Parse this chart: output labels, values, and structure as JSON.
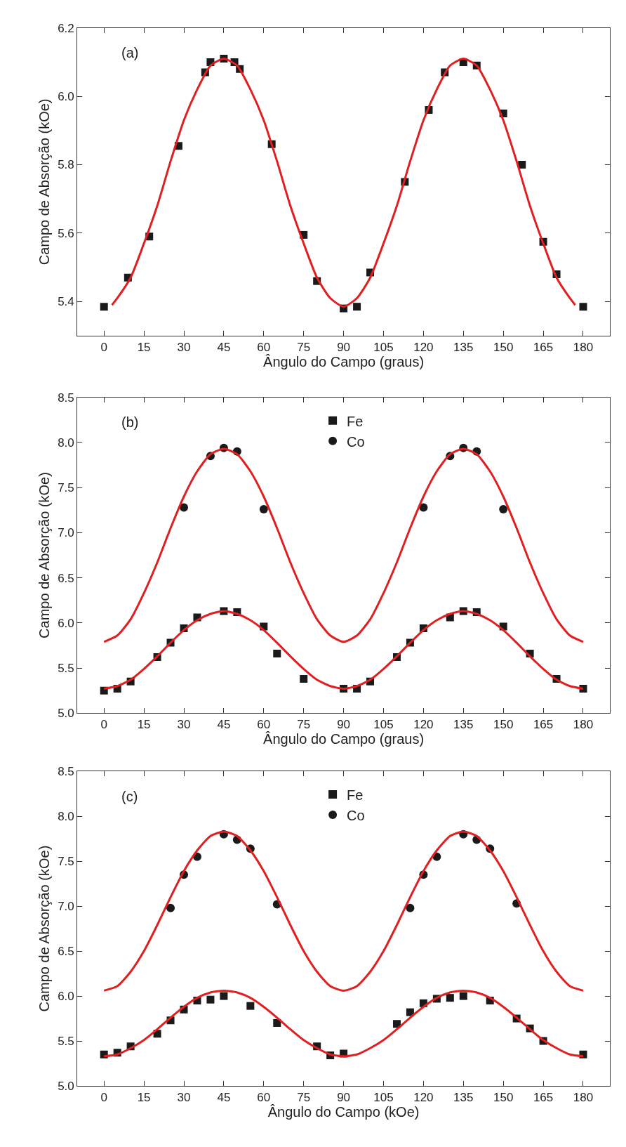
{
  "chart_data": [
    {
      "type": "scatter",
      "xlabel": "Ângulo do Campo (graus)",
      "ylabel": "Campo de Absorção (kOe)",
      "annotations": [
        "(a)"
      ],
      "xlim": [
        -10,
        190
      ],
      "ylim": [
        5.3,
        6.2
      ],
      "xticks": [
        0,
        15,
        30,
        45,
        60,
        75,
        90,
        105,
        120,
        135,
        150,
        165,
        180
      ],
      "yticks": [
        5.4,
        5.6,
        5.8,
        {
          "value": 6,
          "label": "6.0"
        },
        6.2
      ],
      "grid": false,
      "legend": false,
      "series": [
        {
          "marker": "square",
          "color": "#1a1a1a",
          "x": [
            0,
            9,
            17,
            28,
            38,
            40,
            45,
            49,
            51,
            63,
            75,
            80,
            90,
            95,
            100,
            113,
            122,
            128,
            135,
            140,
            150,
            157,
            165,
            170,
            180
          ],
          "values": [
            5.385,
            5.47,
            5.59,
            5.855,
            6.07,
            6.1,
            6.11,
            6.1,
            6.08,
            5.86,
            5.595,
            5.46,
            5.38,
            5.385,
            5.485,
            5.75,
            5.96,
            6.07,
            6.1,
            6.09,
            5.95,
            5.8,
            5.575,
            5.48,
            5.385
          ]
        },
        {
          "type": "line",
          "marker": "none",
          "color": "#e02020",
          "x": [
            3,
            5,
            10,
            15,
            20,
            25,
            30,
            35,
            40,
            45,
            50,
            55,
            60,
            65,
            70,
            75,
            80,
            85,
            90,
            95,
            100,
            105,
            110,
            115,
            120,
            125,
            130,
            135,
            140,
            145,
            150,
            155,
            160,
            165,
            170,
            175,
            177
          ],
          "values": [
            5.39,
            5.41,
            5.47,
            5.57,
            5.68,
            5.81,
            5.93,
            6.02,
            6.09,
            6.11,
            6.09,
            6.02,
            5.93,
            5.81,
            5.68,
            5.57,
            5.47,
            5.41,
            5.385,
            5.41,
            5.47,
            5.57,
            5.68,
            5.81,
            5.93,
            6.02,
            6.09,
            6.11,
            6.09,
            6.02,
            5.93,
            5.81,
            5.68,
            5.57,
            5.47,
            5.41,
            5.39
          ]
        }
      ]
    },
    {
      "type": "scatter",
      "xlabel": "Ângulo do Campo (graus)",
      "ylabel": "Campo de Absorção (kOe)",
      "annotations": [
        "(b)"
      ],
      "xlim": [
        -10,
        190
      ],
      "ylim": [
        5.0,
        8.5
      ],
      "xticks": [
        0,
        15,
        30,
        45,
        60,
        75,
        90,
        105,
        120,
        135,
        150,
        165,
        180
      ],
      "yticks": [
        {
          "value": 5,
          "label": "5.0"
        },
        5.5,
        {
          "value": 6,
          "label": "6.0"
        },
        6.5,
        {
          "value": 7,
          "label": "7.0"
        },
        7.5,
        {
          "value": 8,
          "label": "8.0"
        },
        8.5
      ],
      "grid": false,
      "legend": "top",
      "series": [
        {
          "name": "Fe",
          "marker": "square",
          "color": "#1a1a1a",
          "x": [
            0,
            5,
            10,
            20,
            25,
            30,
            35,
            45,
            50,
            60,
            65,
            75,
            90,
            95,
            100,
            110,
            115,
            120,
            130,
            135,
            140,
            150,
            160,
            170,
            180
          ],
          "values": [
            5.25,
            5.27,
            5.35,
            5.62,
            5.78,
            5.94,
            6.06,
            6.13,
            6.12,
            5.96,
            5.66,
            5.38,
            5.27,
            5.27,
            5.35,
            5.62,
            5.78,
            5.94,
            6.06,
            6.13,
            6.12,
            5.96,
            5.66,
            5.38,
            5.27
          ]
        },
        {
          "name": "Co",
          "marker": "circle",
          "color": "#1a1a1a",
          "x": [
            30,
            40,
            45,
            50,
            60,
            120,
            130,
            135,
            140,
            150
          ],
          "values": [
            7.28,
            7.85,
            7.94,
            7.9,
            7.26,
            7.28,
            7.85,
            7.94,
            7.9,
            7.26
          ]
        },
        {
          "type": "line",
          "marker": "none",
          "color": "#e02020",
          "x": [
            0,
            5,
            10,
            15,
            20,
            25,
            30,
            35,
            40,
            45,
            50,
            55,
            60,
            65,
            70,
            75,
            80,
            85,
            90,
            95,
            100,
            105,
            110,
            115,
            120,
            125,
            130,
            135,
            140,
            145,
            150,
            155,
            160,
            165,
            170,
            175,
            180
          ],
          "values": [
            5.79,
            5.86,
            6.04,
            6.33,
            6.67,
            7.05,
            7.4,
            7.68,
            7.87,
            7.93,
            7.87,
            7.68,
            7.4,
            7.05,
            6.67,
            6.33,
            6.04,
            5.86,
            5.79,
            5.86,
            6.04,
            6.33,
            6.67,
            7.05,
            7.4,
            7.68,
            7.87,
            7.93,
            7.87,
            7.68,
            7.4,
            7.05,
            6.67,
            6.33,
            6.04,
            5.86,
            5.79
          ]
        },
        {
          "type": "line",
          "marker": "none",
          "color": "#e02020",
          "x": [
            0,
            5,
            10,
            15,
            20,
            25,
            30,
            35,
            40,
            45,
            50,
            55,
            60,
            65,
            70,
            75,
            80,
            85,
            90,
            95,
            100,
            105,
            110,
            115,
            120,
            125,
            130,
            135,
            140,
            145,
            150,
            155,
            160,
            165,
            170,
            175,
            180
          ],
          "values": [
            5.27,
            5.3,
            5.37,
            5.49,
            5.63,
            5.78,
            5.92,
            6.03,
            6.1,
            6.13,
            6.1,
            6.03,
            5.92,
            5.78,
            5.63,
            5.49,
            5.37,
            5.3,
            5.27,
            5.3,
            5.37,
            5.49,
            5.63,
            5.78,
            5.92,
            6.03,
            6.1,
            6.13,
            6.1,
            6.03,
            5.92,
            5.78,
            5.63,
            5.49,
            5.37,
            5.3,
            5.27
          ]
        }
      ]
    },
    {
      "type": "scatter",
      "xlabel": "Ângulo do Campo (kOe)",
      "ylabel": "Campo de Absorção (kOe)",
      "annotations": [
        "(c)"
      ],
      "xlim": [
        -10,
        190
      ],
      "ylim": [
        5.0,
        8.5
      ],
      "xticks": [
        0,
        15,
        30,
        45,
        60,
        75,
        90,
        105,
        120,
        135,
        150,
        165,
        180
      ],
      "yticks": [
        {
          "value": 5,
          "label": "5.0"
        },
        5.5,
        {
          "value": 6,
          "label": "6.0"
        },
        6.5,
        {
          "value": 7,
          "label": "7.0"
        },
        7.5,
        {
          "value": 8,
          "label": "8.0"
        },
        8.5
      ],
      "grid": false,
      "legend": "top",
      "series": [
        {
          "name": "Fe",
          "marker": "square",
          "color": "#1a1a1a",
          "x": [
            0,
            5,
            10,
            20,
            25,
            30,
            35,
            40,
            45,
            55,
            65,
            80,
            85,
            90,
            110,
            115,
            120,
            125,
            130,
            135,
            145,
            155,
            160,
            165,
            180
          ],
          "values": [
            5.35,
            5.37,
            5.44,
            5.58,
            5.73,
            5.85,
            5.95,
            5.96,
            6.0,
            5.89,
            5.7,
            5.44,
            5.34,
            5.36,
            5.69,
            5.82,
            5.92,
            5.97,
            5.98,
            6.0,
            5.95,
            5.75,
            5.64,
            5.5,
            5.35
          ]
        },
        {
          "name": "Co",
          "marker": "circle",
          "color": "#1a1a1a",
          "x": [
            25,
            30,
            35,
            45,
            50,
            55,
            65,
            115,
            120,
            125,
            135,
            140,
            145,
            155
          ],
          "values": [
            6.98,
            7.35,
            7.55,
            7.8,
            7.74,
            7.64,
            7.02,
            6.98,
            7.35,
            7.55,
            7.8,
            7.74,
            7.64,
            7.03
          ]
        },
        {
          "type": "line",
          "marker": "none",
          "color": "#e02020",
          "x": [
            0,
            5,
            10,
            15,
            20,
            25,
            30,
            35,
            40,
            45,
            50,
            55,
            60,
            65,
            70,
            75,
            80,
            85,
            90,
            95,
            100,
            105,
            110,
            115,
            120,
            125,
            130,
            135,
            140,
            145,
            150,
            155,
            160,
            165,
            170,
            175,
            180
          ],
          "values": [
            6.06,
            6.11,
            6.27,
            6.5,
            6.79,
            7.1,
            7.39,
            7.62,
            7.78,
            7.83,
            7.78,
            7.62,
            7.39,
            7.1,
            6.79,
            6.5,
            6.27,
            6.11,
            6.06,
            6.11,
            6.27,
            6.5,
            6.79,
            7.1,
            7.39,
            7.62,
            7.78,
            7.83,
            7.78,
            7.62,
            7.39,
            7.1,
            6.79,
            6.5,
            6.27,
            6.11,
            6.06
          ]
        },
        {
          "type": "line",
          "marker": "none",
          "color": "#e02020",
          "x": [
            0,
            5,
            10,
            15,
            20,
            25,
            30,
            35,
            40,
            45,
            50,
            55,
            60,
            65,
            70,
            75,
            80,
            85,
            90,
            95,
            100,
            105,
            110,
            115,
            120,
            125,
            130,
            135,
            140,
            145,
            150,
            155,
            160,
            165,
            170,
            175,
            180
          ],
          "values": [
            5.33,
            5.35,
            5.42,
            5.51,
            5.63,
            5.76,
            5.88,
            5.98,
            6.04,
            6.06,
            6.04,
            5.98,
            5.88,
            5.76,
            5.63,
            5.51,
            5.42,
            5.35,
            5.33,
            5.35,
            5.42,
            5.51,
            5.63,
            5.76,
            5.88,
            5.98,
            6.04,
            6.06,
            6.04,
            5.98,
            5.88,
            5.76,
            5.63,
            5.51,
            5.42,
            5.35,
            5.33
          ]
        }
      ]
    }
  ]
}
